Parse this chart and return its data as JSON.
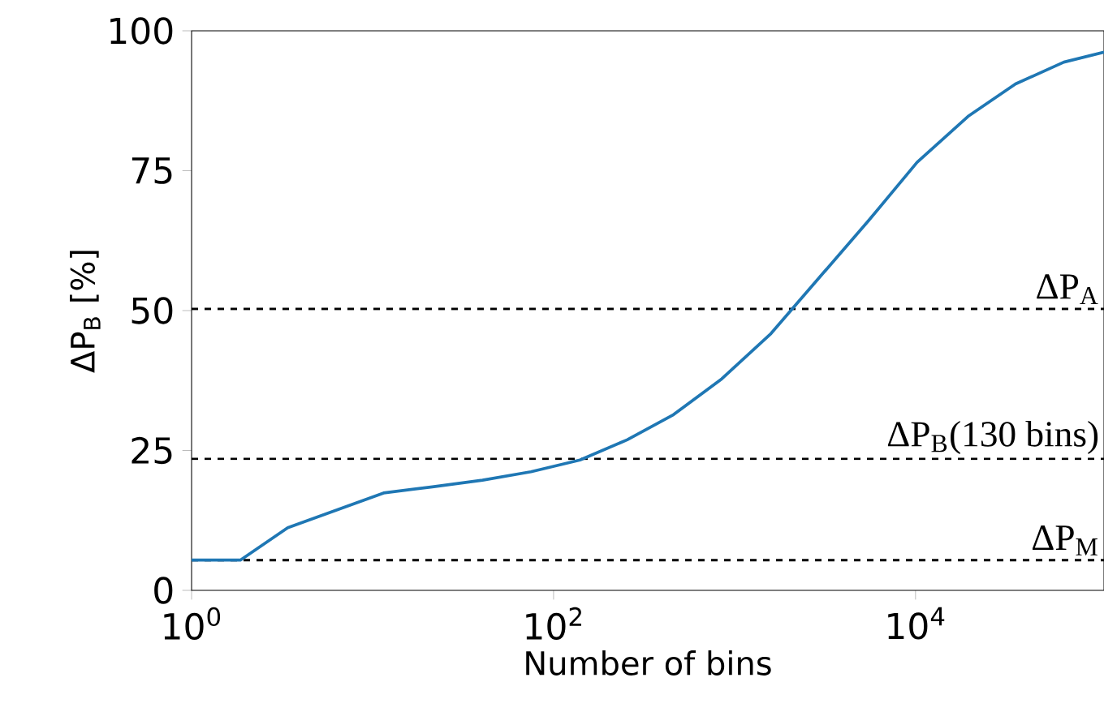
{
  "chart_data": {
    "type": "line",
    "xlabel": "Number of bins",
    "ylabel": "ΔP$_{B}$ [%]",
    "log": "x",
    "x": [
      1,
      1.86,
      3.4,
      11.5,
      21.4,
      40.5,
      75,
      140,
      255,
      460,
      850,
      1590,
      2940,
      5480,
      10200,
      19500,
      35700,
      66000,
      110000
    ],
    "series": [
      {
        "color": "#1f77b4",
        "values": [
          5.4,
          5.4,
          11.2,
          17.4,
          18.5,
          19.7,
          21.2,
          23.3,
          26.9,
          31.4,
          37.8,
          45.9,
          55.9,
          66.0,
          76.5,
          84.7,
          90.5,
          94.4,
          96.2
        ]
      }
    ],
    "xlim": [
      1,
      110000
    ],
    "ylim": [
      0,
      100
    ],
    "xticks": [
      {
        "value": 1,
        "label": "10$^{0}$"
      },
      {
        "value": 100,
        "label": "10$^{2}$"
      },
      {
        "value": 10000,
        "label": "10$^{4}$"
      }
    ],
    "yticks": [
      0,
      25,
      50,
      75,
      100
    ],
    "ref_lines": [
      {
        "axis": "y",
        "value": 50.3,
        "label": "ΔP$_{A}$",
        "color": "#000000",
        "line_style": "dashed"
      },
      {
        "axis": "y",
        "value": 23.5,
        "label": "ΔP$_{B}$(130 bins)",
        "color": "#000000",
        "line_style": "dashed"
      },
      {
        "axis": "y",
        "value": 5.4,
        "label": "ΔP$_{M}$",
        "color": "#000000",
        "line_style": "dashed"
      }
    ]
  }
}
